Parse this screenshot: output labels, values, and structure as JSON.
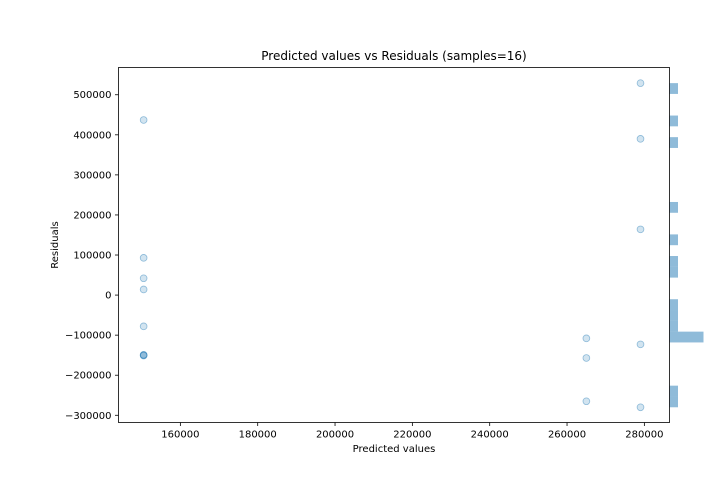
{
  "chart_data": {
    "type": "scatter",
    "title": "Predicted values vs Residuals (samples=16)",
    "xlabel": "Predicted values",
    "ylabel": "Residuals",
    "xlim": [
      144000,
      286500
    ],
    "ylim": [
      -318000,
      568000
    ],
    "x_ticks": [
      160000,
      180000,
      200000,
      220000,
      240000,
      260000,
      280000
    ],
    "x_tick_labels": [
      "160000",
      "180000",
      "200000",
      "220000",
      "240000",
      "260000",
      "280000"
    ],
    "y_ticks": [
      -300000,
      -200000,
      -100000,
      0,
      100000,
      200000,
      300000,
      400000,
      500000
    ],
    "y_tick_labels": [
      "−300000",
      "−200000",
      "−100000",
      "0",
      "100000",
      "200000",
      "300000",
      "400000",
      "500000"
    ],
    "grid": false,
    "point_color": "#1f77b4",
    "point_alpha": 0.2,
    "hist_color": "#1f77b4",
    "hist_alpha": 0.5,
    "points": [
      {
        "x": 150500,
        "y": 437000
      },
      {
        "x": 150500,
        "y": 93000
      },
      {
        "x": 150500,
        "y": 42000
      },
      {
        "x": 150500,
        "y": 14000
      },
      {
        "x": 150500,
        "y": -78000
      },
      {
        "x": 150500,
        "y": -149000
      },
      {
        "x": 150500,
        "y": -150000
      },
      {
        "x": 150500,
        "y": -151000
      },
      {
        "x": 265000,
        "y": -108000
      },
      {
        "x": 265000,
        "y": -157000
      },
      {
        "x": 265000,
        "y": -265000
      },
      {
        "x": 279000,
        "y": 529000
      },
      {
        "x": 279000,
        "y": 390000
      },
      {
        "x": 279000,
        "y": 164000
      },
      {
        "x": 279000,
        "y": -123000
      },
      {
        "x": 279000,
        "y": -280000
      }
    ],
    "histogram": {
      "orientation": "horizontal",
      "bin_range": [
        -280000,
        529000
      ],
      "bins": 30,
      "counts": [
        1,
        1,
        0,
        0,
        0,
        0,
        4,
        1,
        1,
        1,
        0,
        0,
        1,
        1,
        0,
        1,
        0,
        0,
        1,
        0,
        0,
        0,
        0,
        0,
        1,
        0,
        1,
        0,
        0,
        1
      ],
      "count_max": 4
    }
  }
}
